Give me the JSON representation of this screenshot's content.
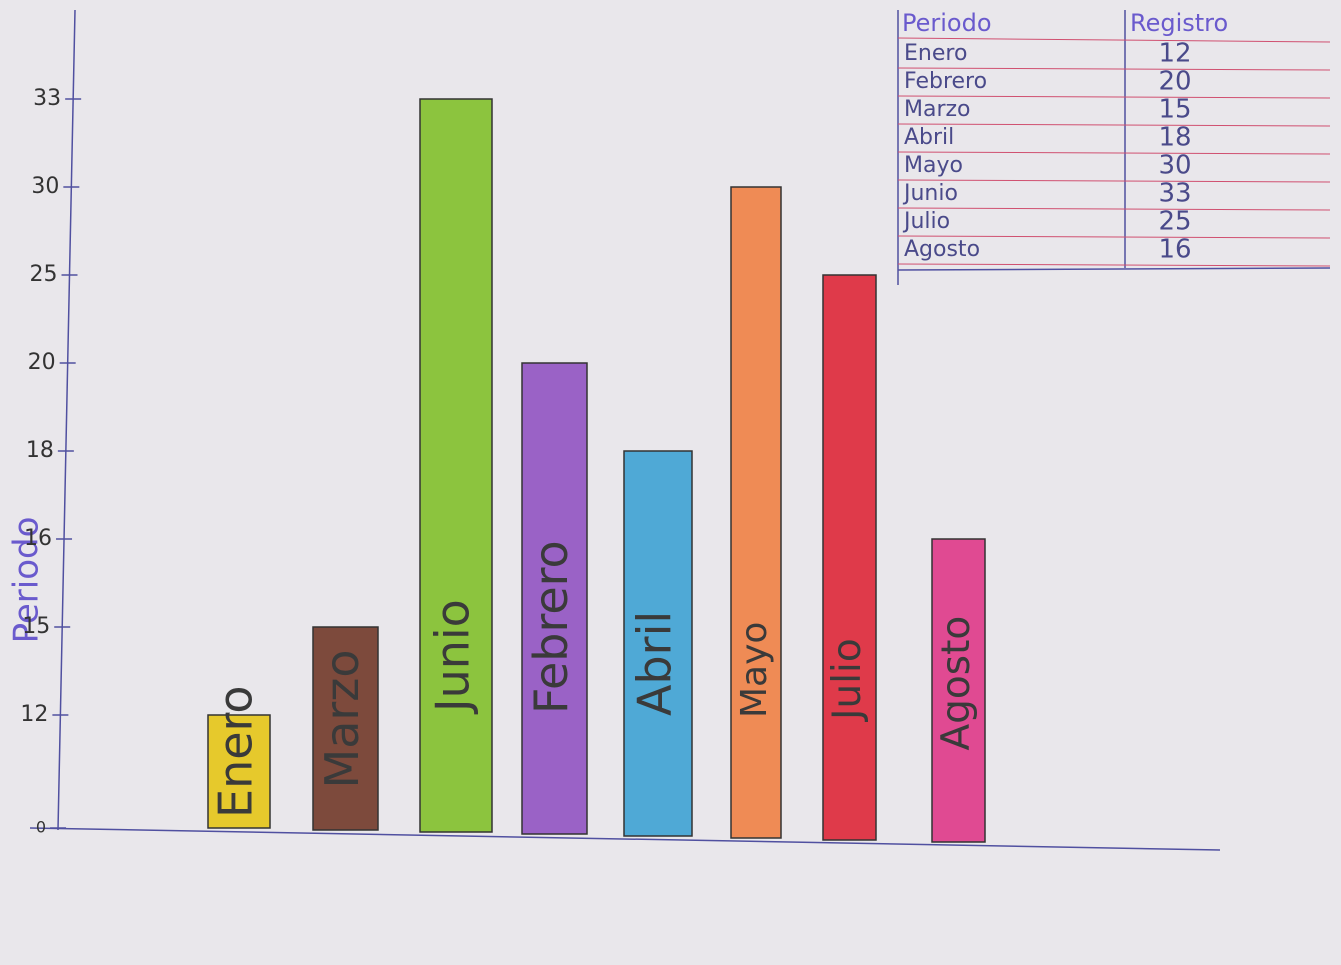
{
  "chart_data": {
    "type": "bar",
    "y_label": "Periodo",
    "categories": [
      "Enero",
      "Marzo",
      "Junio",
      "Febrero",
      "Abril",
      "Mayo",
      "Julio",
      "Agosto"
    ],
    "values": [
      12,
      15,
      33,
      20,
      18,
      30,
      25,
      16
    ],
    "colors": [
      "#e6c92c",
      "#7d4a3c",
      "#8cc43e",
      "#9a62c6",
      "#4fa9d6",
      "#ef8b55",
      "#df3a4a",
      "#e04a92"
    ],
    "ylim": [
      0,
      33
    ],
    "yticks": [
      0,
      12,
      15,
      16,
      18,
      20,
      25,
      30,
      33
    ],
    "table": {
      "header": [
        "Periodo",
        "Registro"
      ],
      "rows": [
        [
          "Enero",
          "12"
        ],
        [
          "Febrero",
          "20"
        ],
        [
          "Marzo",
          "15"
        ],
        [
          "Abril",
          "18"
        ],
        [
          "Mayo",
          "30"
        ],
        [
          "Junio",
          "33"
        ],
        [
          "Julio",
          "25"
        ],
        [
          "Agosto",
          "16"
        ]
      ]
    }
  }
}
